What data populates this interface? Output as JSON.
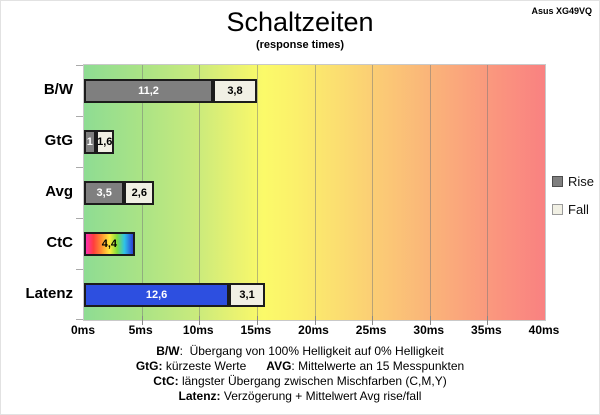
{
  "header": {
    "title": "Schaltzeiten",
    "subtitle": "(response times)",
    "device": "Asus XG49VQ"
  },
  "legend": {
    "items": [
      {
        "label": "Rise",
        "swatch": "#7f7f7f",
        "border": "#4d4d4d"
      },
      {
        "label": "Fall",
        "swatch": "#f1f0e4",
        "border": "#9a9a9a"
      }
    ]
  },
  "chart_data": {
    "type": "bar",
    "orientation": "horizontal",
    "title": "Schaltzeiten",
    "subtitle": "(response times)",
    "annotation": "Asus XG49VQ",
    "unit": "ms",
    "xlim": [
      0,
      40
    ],
    "x_tick_step": 5,
    "x_tick_labels": [
      "0ms",
      "5ms",
      "10ms",
      "15ms",
      "20ms",
      "25ms",
      "30ms",
      "35ms",
      "40ms"
    ],
    "grid": "vertical gridlines every 5ms",
    "legend_position": "right",
    "plot_background": "horizontal gradient green to yellow to red",
    "categories": [
      "B/W",
      "GtG",
      "Avg",
      "CtC",
      "Latenz"
    ],
    "series": [
      {
        "name": "Rise",
        "values": [
          11.2,
          1,
          3.5,
          4.4,
          12.6
        ],
        "labels": [
          "11,2",
          "1",
          "3,5",
          "4,4",
          "12,6"
        ]
      },
      {
        "name": "Fall",
        "values": [
          3.8,
          1.6,
          2.6,
          null,
          3.1
        ],
        "labels": [
          "3,8",
          "1,6",
          "2,6",
          null,
          "3,1"
        ]
      }
    ],
    "rise_fills": [
      "gray",
      "gray",
      "gray",
      "rainbow",
      "blue"
    ],
    "colors": {
      "rise_gray": "#7f7f7f",
      "latenz_blue": "#2d4fe0",
      "fall_cream": "#f1f0e4",
      "bar_border": "#1c1c1c",
      "ctc_rainbow": "magenta-red-yellow-green-blue gradient"
    }
  },
  "footer": {
    "lines": [
      [
        {
          "t": "B/W",
          "b": true
        },
        {
          "t": ":  Übergang von 100% Helligkeit auf 0% Helligkeit",
          "b": false
        }
      ],
      [
        {
          "t": "GtG:",
          "b": true
        },
        {
          "t": " kürzeste Werte      ",
          "b": false
        },
        {
          "t": "AVG",
          "b": true
        },
        {
          "t": ": Mittelwerte an 15 Messpunkten",
          "b": false
        }
      ],
      [
        {
          "t": "CtC:",
          "b": true
        },
        {
          "t": " längster Übergang zwischen Mischfarben (C,M,Y)",
          "b": false
        }
      ],
      [
        {
          "t": "Latenz:",
          "b": true
        },
        {
          "t": " Verzögerung + Mittelwert Avg rise/fall",
          "b": false
        }
      ]
    ]
  }
}
